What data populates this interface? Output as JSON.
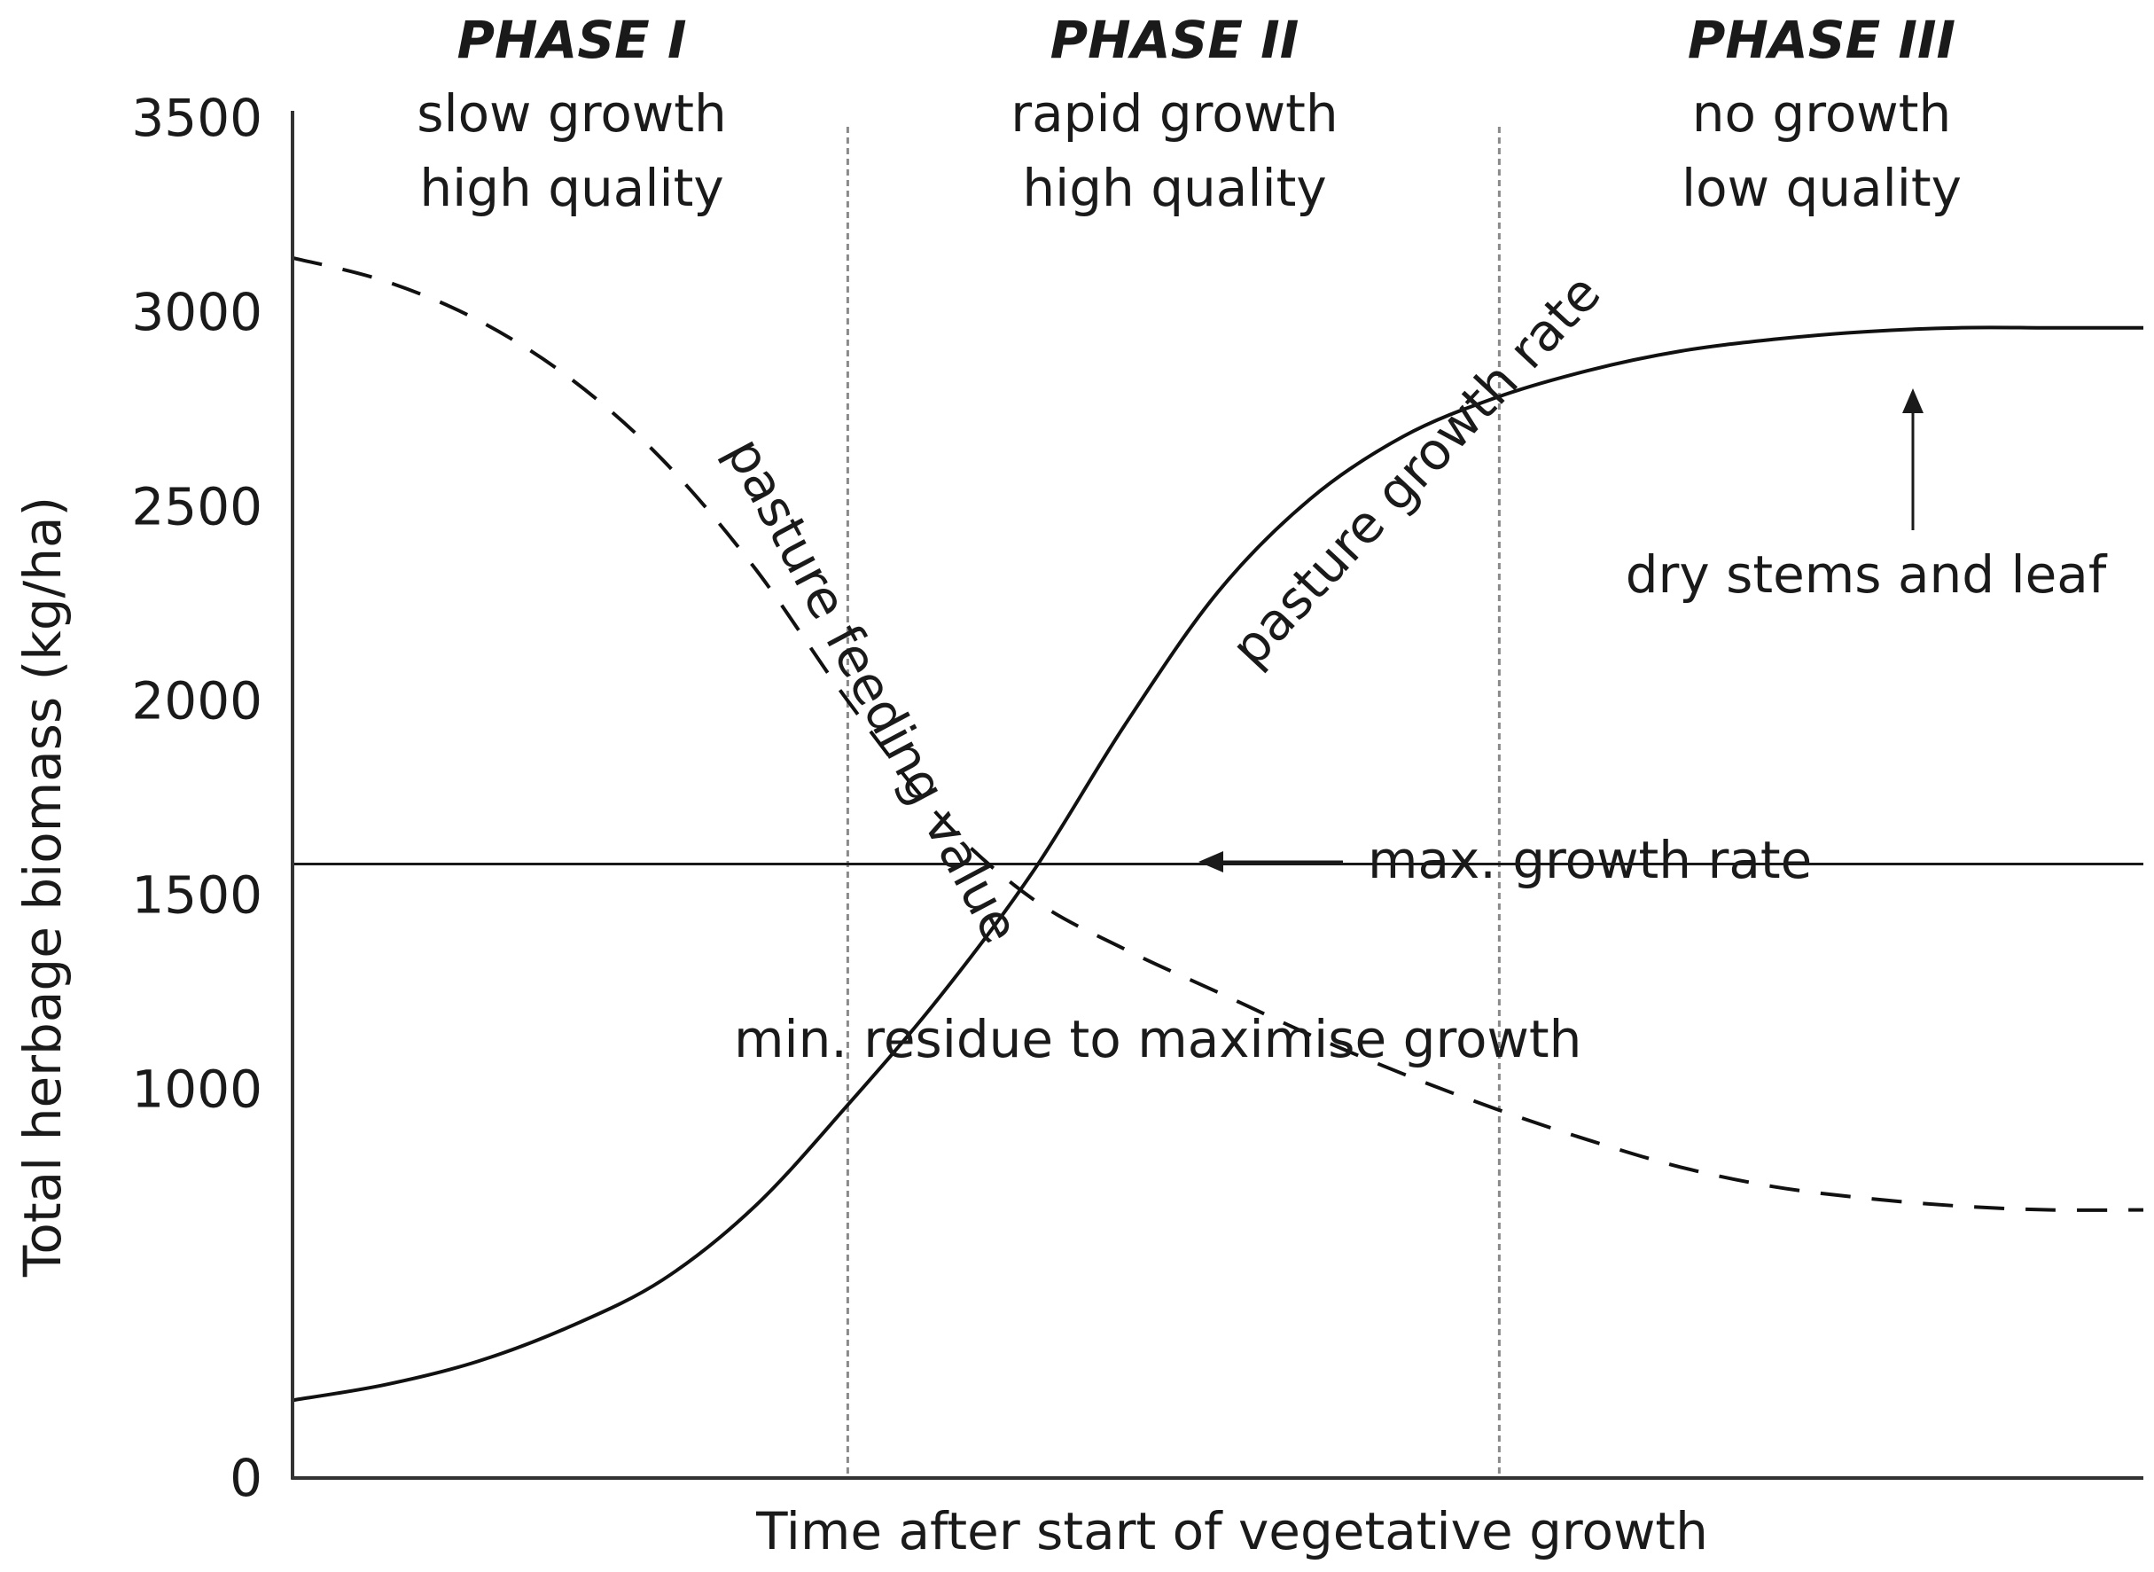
{
  "chart_data": {
    "type": "line",
    "title": "",
    "xlabel": "Time after start of vegetative growth",
    "ylabel": "Total herbage biomass (kg/ha)",
    "ylim": [
      0,
      3500
    ],
    "yticks": [
      0,
      1000,
      1500,
      2000,
      2500,
      3000,
      3500
    ],
    "xlim": [
      0,
      1
    ],
    "grid": false,
    "legend": "none",
    "phases": [
      {
        "name": "PHASE I",
        "line1": "slow growth",
        "line2": "high quality",
        "x_start": 0.0,
        "x_end": 0.3
      },
      {
        "name": "PHASE II",
        "line1": "rapid growth",
        "line2": "high quality",
        "x_start": 0.3,
        "x_end": 0.652
      },
      {
        "name": "PHASE III",
        "line1": "no growth",
        "line2": "low quality",
        "x_start": 0.652,
        "x_end": 1.0
      }
    ],
    "series": [
      {
        "name": "pasture growth rate",
        "style": "solid",
        "x": [
          0,
          0.05,
          0.1,
          0.15,
          0.2,
          0.25,
          0.3,
          0.35,
          0.4,
          0.45,
          0.5,
          0.55,
          0.6,
          0.65,
          0.7,
          0.75,
          0.8,
          0.85,
          0.9,
          0.95,
          1.0
        ],
        "y": [
          200,
          240,
          300,
          390,
          510,
          700,
          960,
          1240,
          1560,
          1940,
          2280,
          2520,
          2680,
          2780,
          2850,
          2900,
          2930,
          2950,
          2960,
          2960,
          2960
        ]
      },
      {
        "name": "pasture feeding value",
        "style": "dashed",
        "x": [
          0,
          0.05,
          0.1,
          0.15,
          0.2,
          0.25,
          0.3,
          0.35,
          0.4,
          0.45,
          0.5,
          0.55,
          0.6,
          0.65,
          0.7,
          0.75,
          0.8,
          0.85,
          0.9,
          0.95,
          1.0
        ],
        "y": [
          3140,
          3080,
          2980,
          2830,
          2620,
          2340,
          2000,
          1700,
          1490,
          1360,
          1250,
          1140,
          1040,
          950,
          870,
          800,
          750,
          720,
          700,
          690,
          690
        ]
      }
    ],
    "reference_line": {
      "y": 1580,
      "label": "min. residue to maximise growth"
    },
    "annotations": [
      {
        "text": "max. growth rate",
        "x": 0.49,
        "y": 1860
      },
      {
        "text": "dry stems and leaf",
        "x": 0.875,
        "y": 2930
      }
    ]
  }
}
